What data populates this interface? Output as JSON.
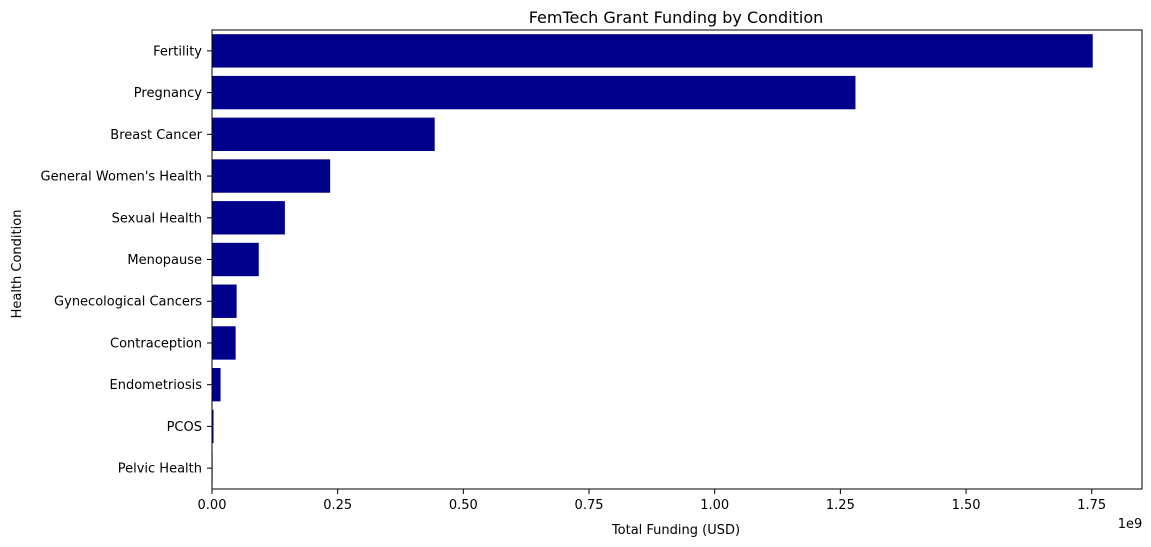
{
  "chart_data": {
    "type": "bar",
    "orientation": "horizontal",
    "title": "FemTech Grant Funding by Condition",
    "xlabel": "Total Funding (USD)",
    "ylabel": "Health Condition",
    "x_offset_label": "1e9",
    "categories": [
      "Fertility",
      "Pregnancy",
      "Breast Cancer",
      "General Women's Health",
      "Sexual Health",
      "Menopause",
      "Gynecological Cancers",
      "Contraception",
      "Endometriosis",
      "PCOS",
      "Pelvic Health"
    ],
    "values": [
      1752000000,
      1280000000,
      443000000,
      235000000,
      145000000,
      93000000,
      49000000,
      47000000,
      17000000,
      3000000,
      500000
    ],
    "xlim": [
      0,
      1850000000
    ],
    "x_ticks": [
      0,
      250000000,
      500000000,
      750000000,
      1000000000,
      1250000000,
      1500000000,
      1750000000
    ],
    "x_tick_labels": [
      "0.00",
      "0.25",
      "0.50",
      "0.75",
      "1.00",
      "1.25",
      "1.50",
      "1.75"
    ],
    "bar_color": "#00008b",
    "grid": false,
    "legend": "none"
  }
}
